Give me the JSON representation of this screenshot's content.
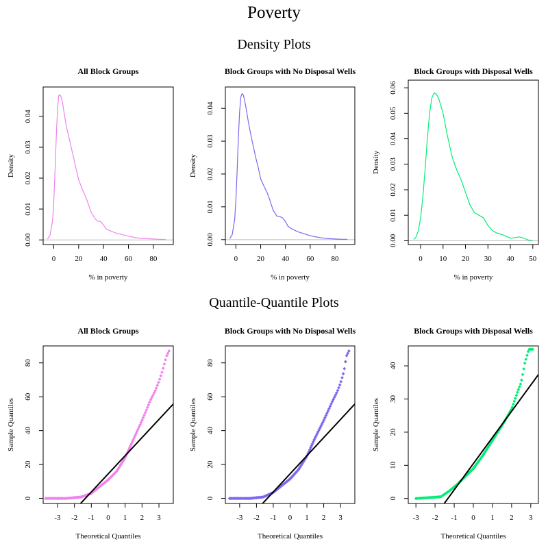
{
  "title": "Poverty",
  "density_heading": "Density Plots",
  "qq_heading": "Quantile-Quantile Plots",
  "chart_data": [
    {
      "type": "line",
      "group": "density",
      "title": "All Block Groups",
      "xlabel": "% in poverty",
      "ylabel": "Density",
      "xlim": [
        -8.5,
        96
      ],
      "ylim": [
        -0.0015,
        0.0495
      ],
      "xticks": [
        0,
        20,
        40,
        60,
        80
      ],
      "yticks": [
        0.0,
        0.01,
        0.02,
        0.03,
        0.04
      ],
      "ytick_labels": [
        "0.00",
        "0.01",
        "0.02",
        "0.03",
        "0.04"
      ],
      "color": "#ee82ee",
      "x": [
        -5,
        -3,
        -1,
        0,
        1,
        2,
        3,
        4,
        5,
        6,
        7,
        8,
        10,
        12,
        14,
        16,
        18,
        20,
        23,
        25,
        27,
        30,
        33,
        35,
        37,
        38,
        40,
        42,
        45,
        50,
        55,
        60,
        65,
        70,
        75,
        80,
        85,
        90
      ],
      "y": [
        0.0003,
        0.0015,
        0.006,
        0.012,
        0.022,
        0.033,
        0.042,
        0.0467,
        0.047,
        0.0462,
        0.0445,
        0.042,
        0.037,
        0.0335,
        0.03,
        0.0265,
        0.023,
        0.0195,
        0.0163,
        0.0145,
        0.0125,
        0.009,
        0.007,
        0.0061,
        0.006,
        0.0058,
        0.0048,
        0.0036,
        0.003,
        0.0022,
        0.0017,
        0.0012,
        0.0008,
        0.0005,
        0.0004,
        0.0003,
        0.0002,
        0.0001
      ]
    },
    {
      "type": "line",
      "group": "density",
      "title": "Block Groups with No Disposal Wells",
      "xlabel": "% in poverty",
      "ylabel": "Density",
      "xlim": [
        -8.5,
        96
      ],
      "ylim": [
        -0.0015,
        0.0465
      ],
      "xticks": [
        0,
        20,
        40,
        60,
        80
      ],
      "yticks": [
        0.0,
        0.01,
        0.02,
        0.03,
        0.04
      ],
      "ytick_labels": [
        "0.00",
        "0.01",
        "0.02",
        "0.03",
        "0.04"
      ],
      "color": "#7b68ee",
      "x": [
        -5,
        -3,
        -1,
        0,
        1,
        2,
        3,
        4,
        5,
        6,
        7,
        8,
        10,
        12,
        14,
        16,
        18,
        20,
        23,
        25,
        27,
        30,
        33,
        35,
        37,
        38,
        40,
        42,
        45,
        50,
        55,
        60,
        65,
        70,
        75,
        80,
        85,
        90
      ],
      "y": [
        0.0003,
        0.0015,
        0.006,
        0.012,
        0.021,
        0.031,
        0.039,
        0.0435,
        0.0445,
        0.044,
        0.0425,
        0.0405,
        0.036,
        0.032,
        0.0285,
        0.025,
        0.022,
        0.0185,
        0.016,
        0.0145,
        0.0125,
        0.009,
        0.0072,
        0.007,
        0.0068,
        0.0065,
        0.0055,
        0.0041,
        0.0033,
        0.0024,
        0.0018,
        0.0012,
        0.0008,
        0.0005,
        0.0003,
        0.0002,
        0.0001,
        0.0001
      ]
    },
    {
      "type": "line",
      "group": "density",
      "title": "Block Groups with Disposal Wells",
      "xlabel": "% in poverty",
      "ylabel": "Density",
      "xlim": [
        -5.5,
        52.5
      ],
      "ylim": [
        -0.0015,
        0.063
      ],
      "xticks": [
        0,
        10,
        20,
        30,
        40,
        50
      ],
      "yticks": [
        0.0,
        0.01,
        0.02,
        0.03,
        0.04,
        0.05,
        0.06
      ],
      "ytick_labels": [
        "0.00",
        "0.01",
        "0.02",
        "0.03",
        "0.04",
        "0.05",
        "0.06"
      ],
      "color": "#00ee76",
      "x": [
        -3,
        -2,
        -1,
        0,
        1,
        2,
        3,
        4,
        5,
        6,
        7,
        8,
        10,
        12,
        14,
        16,
        18,
        20,
        22,
        24,
        26,
        28,
        30,
        32,
        34,
        36,
        38,
        40,
        42,
        44,
        46,
        48,
        50
      ],
      "y": [
        0.0005,
        0.0015,
        0.004,
        0.009,
        0.017,
        0.028,
        0.04,
        0.05,
        0.056,
        0.058,
        0.0575,
        0.056,
        0.05,
        0.041,
        0.033,
        0.028,
        0.024,
        0.019,
        0.014,
        0.011,
        0.01,
        0.009,
        0.006,
        0.004,
        0.003,
        0.0025,
        0.0018,
        0.001,
        0.0012,
        0.0015,
        0.001,
        0.0003,
        0.0001
      ]
    },
    {
      "type": "scatter",
      "group": "qq",
      "title": "All Block Groups",
      "xlabel": "Theoretical Quantiles",
      "ylabel": "Sample Quantiles",
      "xlim": [
        -3.85,
        3.85
      ],
      "ylim": [
        -3,
        90
      ],
      "xticks": [
        -3,
        -2,
        -1,
        0,
        1,
        2,
        3
      ],
      "yticks": [
        0,
        20,
        40,
        60,
        80
      ],
      "color": "#ee82ee",
      "qq_anchors": [
        [
          -3.7,
          0
        ],
        [
          -2.5,
          0
        ],
        [
          -1.6,
          0.8
        ],
        [
          -1.0,
          3
        ],
        [
          0,
          11
        ],
        [
          0.5,
          16
        ],
        [
          1.0,
          24
        ],
        [
          1.5,
          35
        ],
        [
          2.0,
          46
        ],
        [
          2.5,
          58
        ],
        [
          2.8,
          64
        ],
        [
          3.0,
          69
        ],
        [
          3.2,
          75
        ],
        [
          3.45,
          84
        ],
        [
          3.6,
          87
        ]
      ],
      "qq_line": {
        "intercept": 14.5,
        "slope": 10.7
      },
      "line_color": "#000000"
    },
    {
      "type": "scatter",
      "group": "qq",
      "title": "Block Groups with No Disposal Wells",
      "xlabel": "Theoretical Quantiles",
      "ylabel": "Sample Quantiles",
      "xlim": [
        -3.85,
        3.85
      ],
      "ylim": [
        -3,
        90
      ],
      "xticks": [
        -3,
        -2,
        -1,
        0,
        1,
        2,
        3
      ],
      "yticks": [
        0,
        20,
        40,
        60,
        80
      ],
      "color": "#7b68ee",
      "qq_anchors": [
        [
          -3.6,
          0
        ],
        [
          -2.4,
          0
        ],
        [
          -1.6,
          0.8
        ],
        [
          -1.0,
          3.5
        ],
        [
          0,
          11.5
        ],
        [
          0.5,
          17
        ],
        [
          1.0,
          25
        ],
        [
          1.5,
          36
        ],
        [
          2.0,
          46
        ],
        [
          2.5,
          57
        ],
        [
          2.8,
          63
        ],
        [
          3.0,
          68
        ],
        [
          3.2,
          75
        ],
        [
          3.35,
          84
        ],
        [
          3.5,
          87
        ]
      ],
      "qq_line": {
        "intercept": 14.5,
        "slope": 10.7
      },
      "line_color": "#000000"
    },
    {
      "type": "scatter",
      "group": "qq",
      "title": "Block Groups with Disposal Wells",
      "xlabel": "Theoretical Quantiles",
      "ylabel": "Sample Quantiles",
      "xlim": [
        -3.4,
        3.4
      ],
      "ylim": [
        -1.5,
        46
      ],
      "xticks": [
        -3,
        -2,
        -1,
        0,
        1,
        2,
        3
      ],
      "yticks": [
        0,
        10,
        20,
        30,
        40
      ],
      "color": "#00ee76",
      "qq_anchors": [
        [
          -3.0,
          0
        ],
        [
          -1.7,
          0.5
        ],
        [
          -1.2,
          2.5
        ],
        [
          -0.8,
          4.5
        ],
        [
          0,
          9
        ],
        [
          0.5,
          13
        ],
        [
          1.0,
          17.5
        ],
        [
          1.5,
          22
        ],
        [
          1.8,
          25
        ],
        [
          2.0,
          27
        ],
        [
          2.3,
          32
        ],
        [
          2.5,
          35
        ],
        [
          2.7,
          41
        ],
        [
          2.9,
          45
        ],
        [
          3.1,
          45
        ]
      ],
      "qq_line": {
        "intercept": 10.5,
        "slope": 7.9
      },
      "line_color": "#000000"
    }
  ]
}
